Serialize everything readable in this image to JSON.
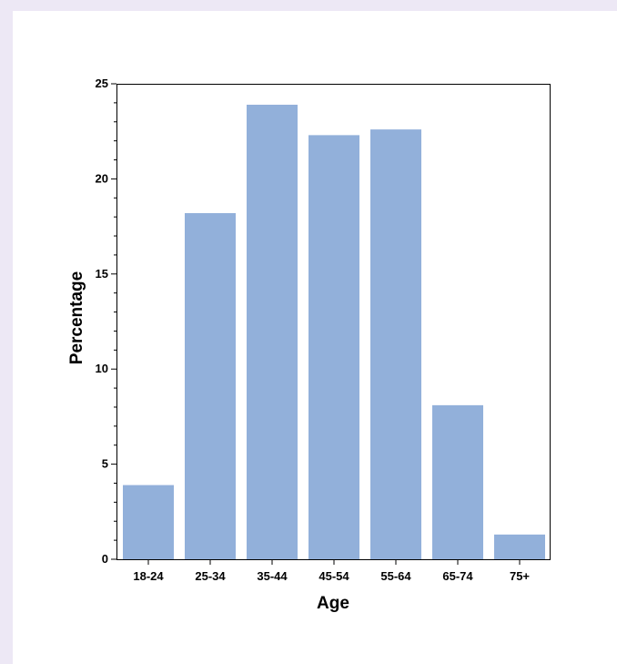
{
  "colors": {
    "page_background": "#ede8f5",
    "panel_background": "#ffffff",
    "bar_fill": "#92b0da",
    "axis": "#000000"
  },
  "chart_data": {
    "type": "bar",
    "categories": [
      "18-24",
      "25-34",
      "35-44",
      "45-54",
      "55-64",
      "65-74",
      "75+"
    ],
    "values": [
      3.9,
      18.2,
      23.9,
      22.3,
      22.6,
      8.1,
      1.3
    ],
    "title": "",
    "xlabel": "Age",
    "ylabel": "Percentage",
    "ylim": [
      0,
      25
    ],
    "yticks": [
      0,
      5,
      10,
      15,
      20,
      25
    ],
    "y_minor_step": 1,
    "grid": false,
    "legend": "none"
  }
}
